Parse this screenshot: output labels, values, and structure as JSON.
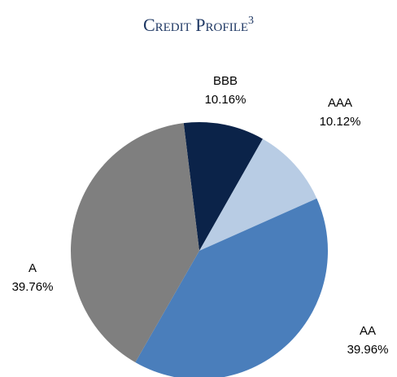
{
  "chart_data": {
    "type": "pie",
    "title": "Credit Profile",
    "title_footnote": "3",
    "categories": [
      "BBB",
      "AAA",
      "AA",
      "A"
    ],
    "values": [
      10.16,
      10.12,
      39.96,
      39.76
    ],
    "value_labels": [
      "10.16%",
      "10.12%",
      "39.96%",
      "39.76%"
    ],
    "colors": [
      "#0b2349",
      "#b8cce4",
      "#4a7ebb",
      "#7f7f7f"
    ]
  }
}
